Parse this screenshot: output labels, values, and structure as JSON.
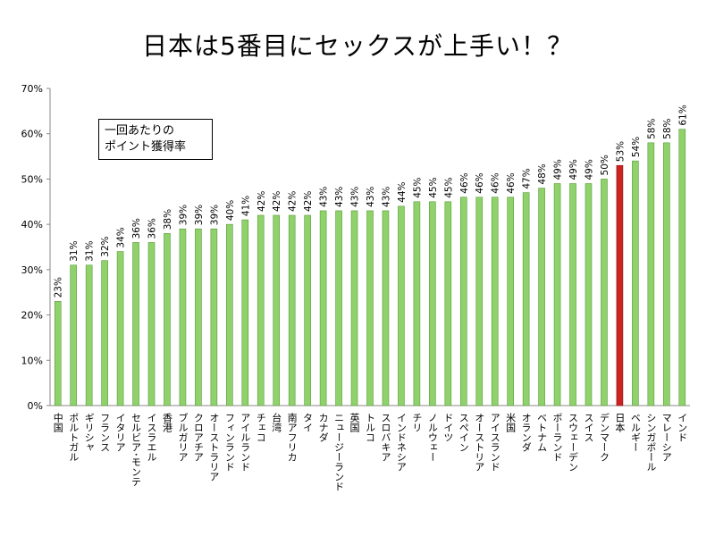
{
  "chart_data": {
    "type": "bar",
    "title": "日本は5番目にセックスが上手い！？",
    "note_lines": [
      "一回あたりの",
      "ポイント獲得率"
    ],
    "ylim": [
      0,
      70
    ],
    "yticks": [
      0,
      10,
      20,
      30,
      40,
      50,
      60,
      70
    ],
    "y_tick_labels": [
      "0%",
      "10%",
      "20%",
      "30%",
      "40%",
      "50%",
      "60%",
      "70%"
    ],
    "grid": false,
    "bar_color": "#8fd16a",
    "bar_edge_color": "#5a9a3a",
    "highlight_color": "#cc2222",
    "highlight_edge_color": "#8a1010",
    "highlight_category": "日本",
    "categories": [
      "中国",
      "ポルトガル",
      "ギリシャ",
      "フランス",
      "イタリア",
      "セルビア･モンテ",
      "イスラエル",
      "香港",
      "ブルガリア",
      "クロアチア",
      "オーストラリア",
      "フィンランド",
      "アイルランド",
      "チェコ",
      "台湾",
      "南アフリカ",
      "タイ",
      "カナダ",
      "ニュージーランド",
      "英国",
      "トルコ",
      "スロバキア",
      "インドネシア",
      "チリ",
      "ノルウェー",
      "ドイツ",
      "スペイン",
      "オーストリア",
      "アイスランド",
      "米国",
      "オランダ",
      "ベトナム",
      "ポーランド",
      "スウェーデン",
      "スイス",
      "デンマーク",
      "日本",
      "ベルギー",
      "シンガポール",
      "マレーシア",
      "インド"
    ],
    "values": [
      23,
      31,
      31,
      32,
      34,
      36,
      36,
      38,
      39,
      39,
      39,
      40,
      41,
      42,
      42,
      42,
      42,
      43,
      43,
      43,
      43,
      43,
      44,
      45,
      45,
      45,
      46,
      46,
      46,
      46,
      47,
      48,
      49,
      49,
      49,
      50,
      53,
      54,
      58,
      58,
      61
    ],
    "value_labels": [
      "23%",
      "31%",
      "31%",
      "32%",
      "34%",
      "36%",
      "36%",
      "38%",
      "39%",
      "39%",
      "39%",
      "40%",
      "41%",
      "42%",
      "42%",
      "42%",
      "42%",
      "43%",
      "43%",
      "43%",
      "43%",
      "43%",
      "44%",
      "45%",
      "45%",
      "45%",
      "46%",
      "46%",
      "46%",
      "46%",
      "47%",
      "48%",
      "49%",
      "49%",
      "49%",
      "50%",
      "53%",
      "54%",
      "58%",
      "58%",
      "61%"
    ]
  }
}
